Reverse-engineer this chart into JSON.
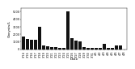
{
  "title": "",
  "xlabel": "Date",
  "ylabel": "Oocysts/L",
  "dates": [
    "3/14",
    "3/15",
    "3/16",
    "3/17",
    "3/18",
    "3/19",
    "3/20",
    "3/21",
    "3/22",
    "3/23",
    "3/24",
    "3/25",
    "3/26",
    "3/27",
    "3/28",
    "3/29",
    "3/30",
    "3/31",
    "4/1",
    "4/2",
    "4/3",
    "4/4",
    "4/5",
    "4/6",
    "4/7",
    "4/8"
  ],
  "values": [
    1700,
    1400,
    1300,
    1300,
    3000,
    500,
    400,
    300,
    250,
    200,
    200,
    5000,
    1500,
    1100,
    1000,
    300,
    200,
    150,
    150,
    150,
    700,
    150,
    150,
    500,
    500,
    0
  ],
  "bar_color": "#111111",
  "ylim": [
    0,
    5500
  ],
  "yticks": [
    0,
    1000,
    2000,
    3000,
    4000,
    5000
  ],
  "ytick_labels": [
    "0",
    "1000",
    "2000",
    "3000",
    "4000",
    "5000"
  ],
  "background_color": "#ffffff",
  "label_fontsize": 3.2,
  "tick_fontsize": 2.5,
  "bar_width": 0.75
}
